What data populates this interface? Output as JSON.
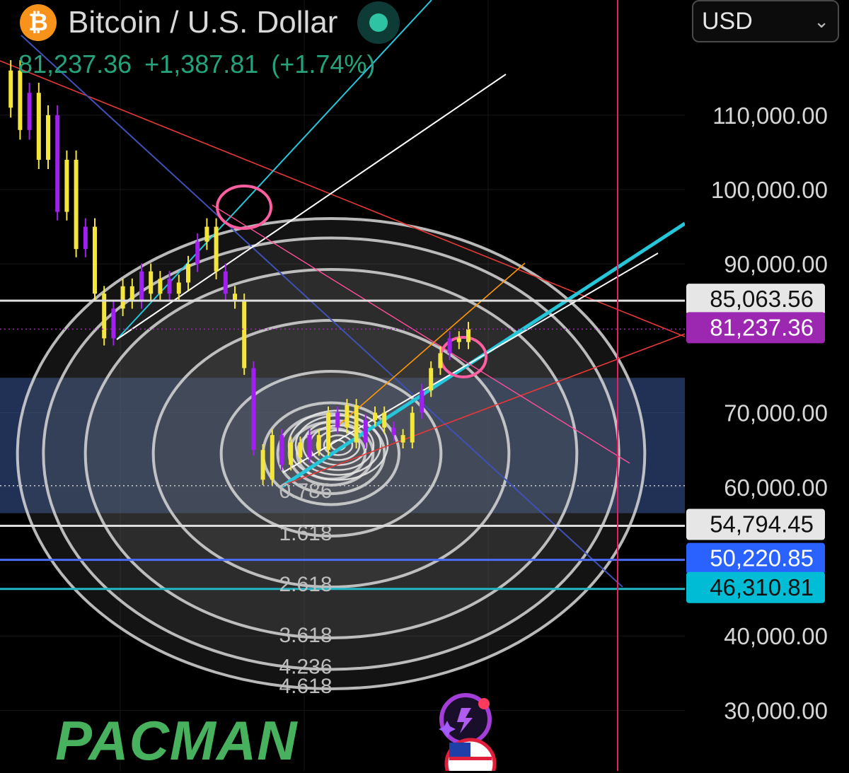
{
  "header": {
    "title": "Bitcoin / U.S. Dollar",
    "coin_symbol": "₿",
    "last_price": "81,237.36",
    "change": "+1,387.81",
    "change_pct": "(+1.74%)",
    "currency": "USD",
    "live_indicator_color": "#2ec4a3"
  },
  "watermark": "PACMAN",
  "chart_data": {
    "type": "line",
    "title": "Bitcoin / U.S. Dollar",
    "ylim": [
      26000,
      118000
    ],
    "y_ticks": [
      "110,000.00",
      "100,000.00",
      "90,000.00",
      "70,000.00",
      "60,000.00",
      "40,000.00",
      "30,000.00"
    ],
    "y_tick_values": [
      110000,
      100000,
      90000,
      70000,
      60000,
      40000,
      30000
    ],
    "price_labels": [
      {
        "value": 85063.56,
        "text": "85,063.56",
        "bg": "#e6e6e6",
        "fg": "#111111"
      },
      {
        "value": 81237.36,
        "text": "81,237.36",
        "bg": "#9c27b0",
        "fg": "#ffffff"
      },
      {
        "value": 54794.45,
        "text": "54,794.45",
        "bg": "#e6e6e6",
        "fg": "#111111"
      },
      {
        "value": 50220.85,
        "text": "50,220.85",
        "bg": "#2962ff",
        "fg": "#ffffff"
      },
      {
        "value": 46310.81,
        "text": "46,310.81",
        "bg": "#00bcd4",
        "fg": "#111111"
      }
    ],
    "horizontal_lines": [
      {
        "value": 85063.56,
        "color": "#dddddd",
        "style": "solid"
      },
      {
        "value": 81237.36,
        "color": "#9c27b0",
        "style": "dotted"
      },
      {
        "value": 60200,
        "color": "#cccccc",
        "style": "dotted"
      },
      {
        "value": 54794.45,
        "color": "#dddddd",
        "style": "solid"
      },
      {
        "value": 50220.85,
        "color": "#4a6cf7",
        "style": "solid"
      },
      {
        "value": 46310.81,
        "color": "#22b7c7",
        "style": "solid"
      }
    ],
    "zone": {
      "from": 56500,
      "to": 74700,
      "color": "#3a5a9a"
    },
    "fib_circles": {
      "center_value": 64500,
      "levels": [
        "0.5",
        "0.618",
        "0.786",
        "1",
        "1.618",
        "2.618",
        "3.618",
        "4.236",
        "4.618"
      ],
      "level_values": [
        0.5,
        0.618,
        0.786,
        1,
        1.618,
        2.618,
        3.618,
        4.236,
        4.618
      ],
      "printed_labels": [
        "0.786",
        "1.618",
        "2.618",
        "3.618",
        "4.236",
        "4.618"
      ],
      "printed_label_values": [
        0.786,
        1.618,
        2.618,
        3.618,
        4.236,
        4.618
      ]
    },
    "price_series": [
      111000,
      116000,
      108000,
      113000,
      104000,
      110000,
      97000,
      104000,
      92000,
      95000,
      86000,
      80000,
      84000,
      87000,
      85000,
      89000,
      86000,
      88000,
      86000,
      87500,
      90000,
      93000,
      95000,
      89000,
      86000,
      85000,
      76000,
      65000,
      61000,
      67000,
      63000,
      66000,
      64000,
      67000,
      65000,
      70000,
      68000,
      71000,
      66000,
      69000,
      70000,
      68000,
      67000,
      66000,
      70000,
      73000,
      76000,
      78000,
      80000,
      79500,
      81237
    ],
    "series_color": "#f5e63c",
    "series_color_alt": "#a020f0",
    "drawn_lines_colors": [
      "#e53935",
      "#3f51b5",
      "#26c6da",
      "#ffffff",
      "#ff9800",
      "#ff4f9a"
    ],
    "current_time_marker_color": "#e91e63"
  }
}
